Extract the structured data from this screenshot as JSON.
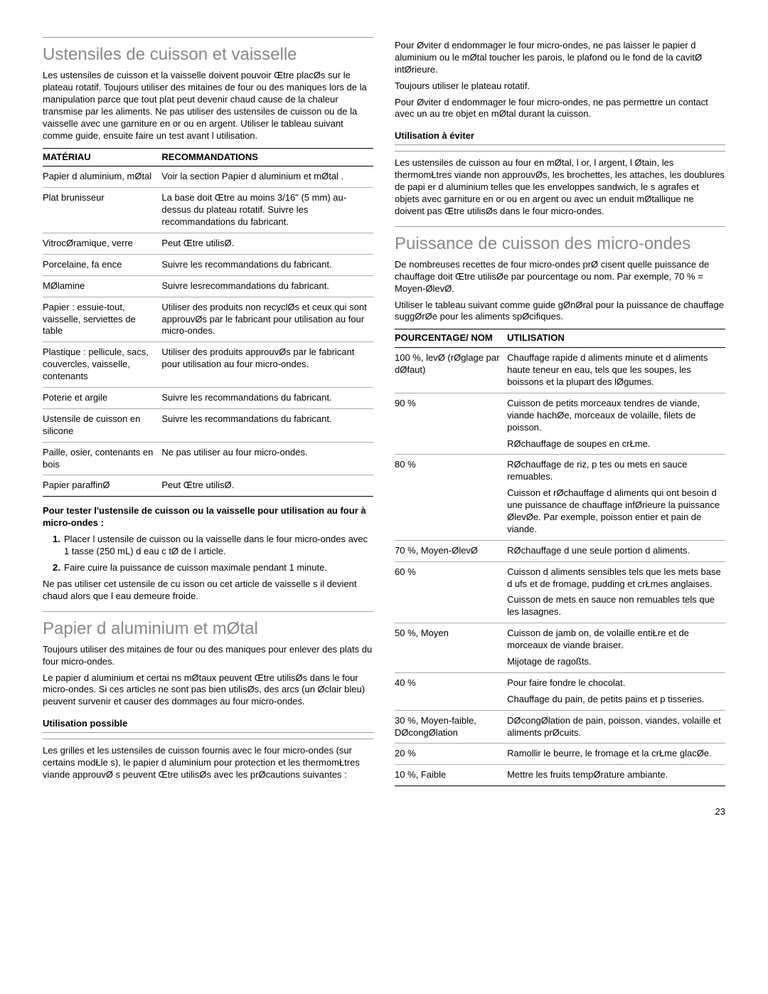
{
  "pageNumber": "23",
  "section1": {
    "title": "Ustensiles de cuisson et vaisselle",
    "intro": "Les ustensiles de cuisson et la vaisselle doivent pouvoir Œtre placØs sur le plateau rotatif. Toujours utiliser des mitaines de four ou des maniques lors de la manipulation parce que tout plat peut devenir chaud  cause de la chaleur transmise par les aliments. Ne pas utiliser des ustensiles de cuisson ou de la vaisselle avec une garniture en or ou en argent. Utiliser le tableau suivant comme guide, ensuite faire un test avant l utilisation.",
    "table": {
      "headers": [
        "MATÉRIAU",
        "RECOMMANDATIONS"
      ],
      "rows": [
        [
          "Papier d aluminium, mØtal",
          "Voir la section  Papier d aluminium et mØtal ."
        ],
        [
          "Plat brunisseur",
          "La base doit Œtre au moins  3/16\" (5 mm) au-dessus du plateau rotatif. Suivre les recommandations du fabricant."
        ],
        [
          "VitrocØramique, verre",
          "Peut Œtre utilisØ."
        ],
        [
          "Porcelaine, fa ence",
          "Suivre les recommandations du fabricant."
        ],
        [
          "MØlamine",
          "Suivre lesrecommandations du fabricant."
        ],
        [
          "Papier : essuie-tout, vaisselle, serviettes de table",
          "Utiliser des produits non recyclØs et ceux qui sont approuvØs par le fabricant pour utilisation au four  micro-ondes."
        ],
        [
          "Plastique : pellicule, sacs, couvercles, vaisselle, contenants",
          "Utiliser des produits approuvØs par le fabricant pour utilisation au four  micro-ondes."
        ],
        [
          "Poterie et argile",
          "Suivre les recommandations du fabricant."
        ],
        [
          "Ustensile de cuisson en silicone",
          "Suivre les recommandations du fabricant."
        ],
        [
          "Paille, osier, contenants en bois",
          "Ne pas utiliser au four  micro-ondes."
        ],
        [
          "Papier paraffinØ",
          "Peut Œtre utilisØ."
        ]
      ]
    },
    "testHead": "Pour tester l'ustensile de cuisson ou la vaisselle pour utilisation au four à micro-ondes :",
    "steps": [
      "Placer l ustensile de cuisson ou la vaisselle dans le four micro-ondes avec 1 tasse (250 mL) d eau  c tØ de l article.",
      "Faire cuire  la puissance de cuisson maximale pendant 1 minute."
    ],
    "testNote": "Ne pas utiliser cet ustensile de cu isson ou cet article de vaisselle s il devient chaud alors que l eau demeure froide."
  },
  "section2": {
    "title": "Papier d aluminium et mØtal",
    "p1": "Toujours utiliser des mitaines de four ou des maniques pour enlever des plats du four  micro-ondes.",
    "p2": "Le papier d aluminium et certai ns mØtaux peuvent Œtre utilisØs dans le four  micro-ondes. Si ces articles ne sont pas bien utilisØs, des arcs (un Øclair bleu) peuvent survenir et causer des dommages au four  micro-ondes.",
    "okHead": "Utilisation possible",
    "okBody": "Les grilles et les ustensiles de cuisson fournis avec le four micro-ondes (sur certains modŁle s), le papier d aluminium pour protection et les thermomŁtres  viande approuvØ s peuvent Œtre utilisØs avec les prØcautions suivantes :",
    "right1": "Pour Øviter d endommager le four  micro-ondes, ne pas laisser le papier d aluminium ou le mØtal toucher les parois, le plafond ou le fond de la cavitØ intØrieure.",
    "right2": "Toujours utiliser le plateau rotatif.",
    "right3": "Pour Øviter d endommager le four  micro-ondes, ne pas permettre un contact avec un au tre objet en mØtal durant la cuisson.",
    "avoidHead": "Utilisation à éviter",
    "avoidBody": "Les ustensiles de cuisson au four en mØtal, l or, l argent, l Øtain, les thermomŁtres  viande non approuvØs, les brochettes, les attaches, les doublures de papi er d aluminium telles que les enveloppes  sandwich, le s agrafes et objets avec garniture en or ou en argent ou avec un enduit mØtallique ne doivent pas Œtre utilisØs dans le four  micro-ondes."
  },
  "section3": {
    "title": "Puissance de cuisson des micro-ondes",
    "intro1": "De nombreuses recettes de four  micro-ondes prØ cisent quelle puissance de chauffage doit Œtre utilisØe par pourcentage ou nom. Par exemple, 70 % = Moyen-ØlevØ.",
    "intro2": "Utiliser le tableau suivant comme guide gØnØral pour la puissance de chauffage suggØrØe pour les aliments spØcifiques.",
    "table": {
      "headers": [
        "POURCENTAGE/ NOM",
        "UTILISATION"
      ],
      "rows": [
        {
          "pct": "100 %,  levØ (rØglage par dØfaut)",
          "use": [
            "Chauffage rapide d aliments minute et d aliments  haute teneur en eau, tels que les soupes, les boissons et la plupart des lØgumes."
          ]
        },
        {
          "pct": "90 %",
          "use": [
            "Cuisson de petits morceaux tendres de viande, viande hachØe, morceaux de volaille, filets de poisson.",
            "RØchauffage de soupes en crŁme."
          ]
        },
        {
          "pct": "80 %",
          "use": [
            "RØchauffage de riz, p tes ou mets en sauce remuables.",
            "Cuisson et rØchauffage d aliments qui ont besoin d une puissance de chauffage infØrieure  la puissance ØlevØe. Par exemple, poisson entier et pain de viande."
          ]
        },
        {
          "pct": "70 %, Moyen-ØlevØ",
          "use": [
            "RØchauffage d une seule portion d aliments."
          ]
        },
        {
          "pct": "60 %",
          "use": [
            "Cuisson d aliments sensibles tels que les mets  base d  ufs et de fromage, pudding et crŁmes anglaises.",
            "Cuisson de mets en sauce non remuables tels que les lasagnes."
          ]
        },
        {
          "pct": "50 %, Moyen",
          "use": [
            "Cuisson de jamb on, de volaille entiŁre et de morceaux de viande  braiser.",
            "Mijotage de ragoßts."
          ]
        },
        {
          "pct": "40 %",
          "use": [
            "Pour faire fondre le chocolat.",
            "Chauffage du pain, de petits pains et p tisseries."
          ]
        },
        {
          "pct": "30 %, Moyen-faible, DØcongØlation",
          "use": [
            "DØcongØlation de pain, poisson, viandes, volaille et aliments prØcuits."
          ]
        },
        {
          "pct": "20 %",
          "use": [
            "Ramollir le beurre, le fromage et la crŁme glacØe."
          ]
        },
        {
          "pct": "10 %, Faible",
          "use": [
            "Mettre les fruits  tempØrature ambiante."
          ]
        }
      ]
    }
  }
}
